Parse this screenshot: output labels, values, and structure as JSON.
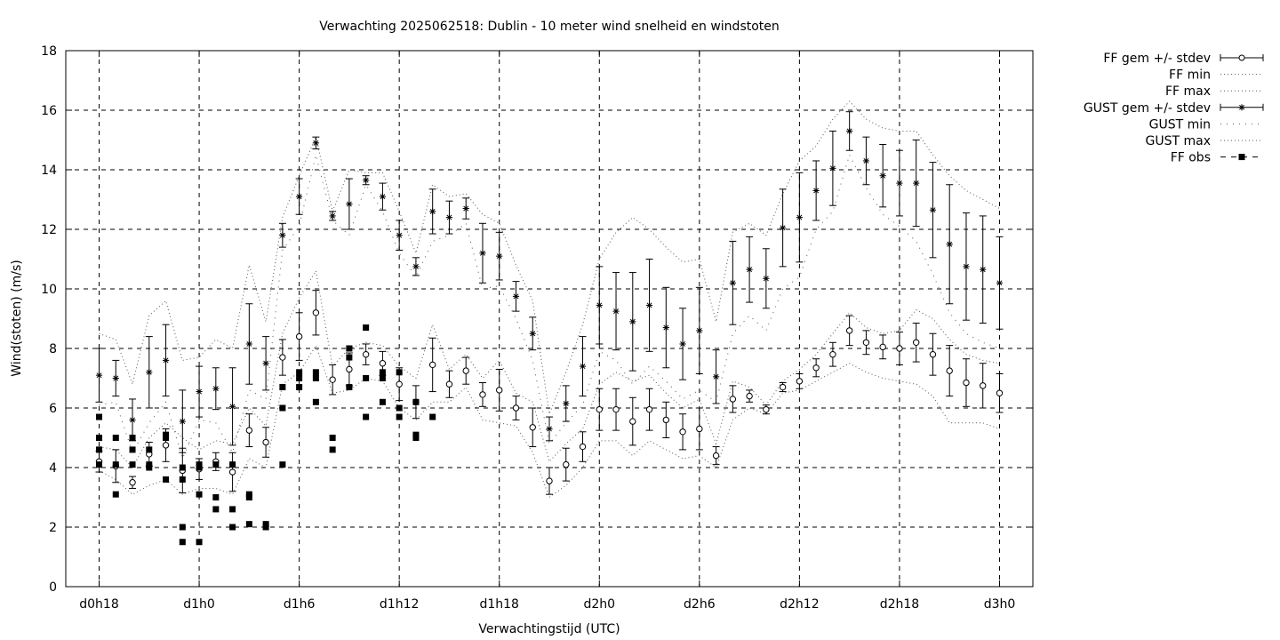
{
  "chart_data": {
    "type": "scatter",
    "title": "Verwachting 2025062518: Dublin - 10 meter wind snelheid en windstoten",
    "xlabel": "Verwachtingstijd (UTC)",
    "ylabel": "Wind(stoten) (m/s)",
    "ylim": [
      0,
      18
    ],
    "y_ticks": [
      0,
      2,
      4,
      6,
      8,
      10,
      12,
      14,
      16,
      18
    ],
    "x_unit": "hours",
    "xlim": [
      -2,
      56
    ],
    "x_tick_hours": [
      0,
      6,
      12,
      18,
      24,
      30,
      36,
      42,
      48,
      54
    ],
    "x_tick_labels": [
      "d0h18",
      "d1h0",
      "d1h6",
      "d1h12",
      "d1h18",
      "d2h0",
      "d2h6",
      "d2h12",
      "d2h18",
      "d3h0"
    ],
    "grid": true,
    "legend_position": "outside-top-right",
    "x": [
      0,
      1,
      2,
      3,
      4,
      5,
      6,
      7,
      8,
      9,
      10,
      11,
      12,
      13,
      14,
      15,
      16,
      17,
      18,
      19,
      20,
      21,
      22,
      23,
      24,
      25,
      26,
      27,
      28,
      29,
      30,
      31,
      32,
      33,
      34,
      35,
      36,
      37,
      38,
      39,
      40,
      41,
      42,
      43,
      44,
      45,
      46,
      47,
      48,
      49,
      50,
      51,
      52,
      53,
      54
    ],
    "series": [
      {
        "name": "FF gem +/- stdev",
        "style": "errorbars-open-circle",
        "values": [
          4.2,
          4.05,
          3.5,
          4.45,
          4.75,
          3.9,
          3.95,
          4.2,
          3.85,
          5.25,
          4.85,
          7.7,
          8.4,
          9.2,
          6.95,
          7.3,
          7.8,
          7.5,
          6.8,
          6.2,
          7.45,
          6.8,
          7.25,
          6.45,
          6.6,
          6.0,
          5.35,
          3.55,
          4.1,
          4.7,
          5.95,
          5.95,
          5.55,
          5.95,
          5.6,
          5.2,
          5.3,
          4.4,
          6.3,
          6.4,
          5.95,
          6.7,
          6.9,
          7.35,
          7.8,
          8.6,
          8.2,
          8.05,
          8.0,
          8.2,
          7.8,
          7.25,
          6.85,
          6.75,
          6.5
        ],
        "stdev": [
          0.35,
          0.55,
          0.2,
          0.4,
          0.55,
          0.75,
          0.35,
          0.3,
          0.65,
          0.55,
          0.5,
          0.6,
          0.8,
          0.75,
          0.5,
          0.55,
          0.35,
          0.4,
          0.55,
          0.55,
          0.9,
          0.45,
          0.45,
          0.4,
          0.7,
          0.4,
          0.65,
          0.45,
          0.55,
          0.5,
          0.7,
          0.7,
          0.8,
          0.7,
          0.6,
          0.6,
          0.7,
          0.3,
          0.45,
          0.2,
          0.15,
          0.15,
          0.25,
          0.3,
          0.4,
          0.5,
          0.4,
          0.4,
          0.55,
          0.65,
          0.7,
          0.85,
          0.8,
          0.75,
          0.65
        ]
      },
      {
        "name": "FF min",
        "style": "dotted",
        "values": [
          3.9,
          3.6,
          3.1,
          3.4,
          3.6,
          3.1,
          3.3,
          3.3,
          3.1,
          4.3,
          4.0,
          6.8,
          7.2,
          8.1,
          6.5,
          6.6,
          7.0,
          6.9,
          6.0,
          5.6,
          6.2,
          6.2,
          6.7,
          5.6,
          5.5,
          5.4,
          4.5,
          3.0,
          3.4,
          4.0,
          4.9,
          4.9,
          4.4,
          4.9,
          4.6,
          4.3,
          4.4,
          4.0,
          5.6,
          6.0,
          5.8,
          6.5,
          6.6,
          6.9,
          7.2,
          7.5,
          7.2,
          7.0,
          6.9,
          6.8,
          6.4,
          5.5,
          5.5,
          5.5,
          5.3
        ]
      },
      {
        "name": "FF max",
        "style": "dotted",
        "values": [
          4.7,
          4.6,
          4.0,
          5.0,
          5.5,
          5.0,
          4.6,
          4.9,
          4.8,
          6.0,
          5.4,
          8.5,
          9.7,
          10.6,
          7.4,
          8.0,
          8.2,
          8.1,
          7.4,
          7.0,
          8.8,
          7.3,
          7.8,
          7.0,
          7.6,
          6.5,
          6.2,
          4.2,
          4.8,
          5.3,
          6.8,
          7.2,
          6.9,
          7.1,
          6.5,
          6.0,
          6.3,
          4.8,
          6.9,
          6.7,
          6.1,
          6.9,
          7.3,
          7.8,
          8.5,
          9.2,
          8.7,
          8.5,
          8.6,
          9.3,
          9.0,
          8.3,
          7.8,
          7.6,
          7.5
        ]
      },
      {
        "name": "GUST gem +/- stdev",
        "style": "errorbars-star",
        "values": [
          7.1,
          7.0,
          5.6,
          7.2,
          7.6,
          5.55,
          6.55,
          6.65,
          6.05,
          8.15,
          7.5,
          11.8,
          13.1,
          14.9,
          12.45,
          12.85,
          13.65,
          13.1,
          11.8,
          10.75,
          12.6,
          12.4,
          12.7,
          11.2,
          11.1,
          9.75,
          8.5,
          5.3,
          6.15,
          7.4,
          9.45,
          9.25,
          8.9,
          9.45,
          8.7,
          8.15,
          8.6,
          7.05,
          10.2,
          10.65,
          10.35,
          12.05,
          12.4,
          13.3,
          14.05,
          15.3,
          14.3,
          13.8,
          13.55,
          13.55,
          12.65,
          11.5,
          10.75,
          10.65,
          10.2
        ],
        "stdev": [
          0.9,
          0.6,
          0.7,
          1.2,
          1.2,
          1.05,
          0.85,
          0.7,
          1.3,
          1.35,
          0.9,
          0.4,
          0.6,
          0.2,
          0.15,
          0.85,
          0.15,
          0.45,
          0.5,
          0.3,
          0.75,
          0.55,
          0.35,
          1.0,
          0.8,
          0.5,
          0.55,
          0.4,
          0.6,
          1.0,
          1.3,
          1.3,
          1.65,
          1.55,
          1.35,
          1.2,
          1.45,
          0.9,
          1.4,
          1.1,
          1.0,
          1.3,
          1.5,
          1.0,
          1.25,
          0.65,
          0.8,
          1.05,
          1.1,
          1.45,
          1.6,
          2.0,
          1.8,
          1.8,
          1.55
        ]
      },
      {
        "name": "GUST min",
        "style": "dotted",
        "values": [
          6.1,
          6.2,
          4.5,
          5.5,
          6.2,
          4.3,
          5.6,
          5.5,
          4.5,
          6.6,
          6.3,
          11.3,
          12.1,
          14.5,
          12.3,
          11.8,
          13.5,
          12.6,
          11.2,
          10.4,
          11.6,
          11.8,
          12.2,
          10.0,
          10.1,
          9.0,
          7.6,
          4.8,
          5.5,
          6.1,
          7.9,
          7.6,
          6.8,
          7.4,
          6.9,
          6.3,
          6.6,
          6.2,
          8.5,
          9.1,
          8.6,
          10.0,
          10.4,
          12.0,
          12.6,
          14.5,
          13.4,
          12.5,
          12.1,
          11.6,
          10.5,
          9.2,
          8.5,
          8.2,
          8.0
        ]
      },
      {
        "name": "GUST max",
        "style": "dotted",
        "values": [
          8.5,
          8.3,
          6.8,
          9.1,
          9.6,
          7.6,
          7.7,
          8.3,
          8.0,
          10.8,
          8.9,
          12.4,
          13.8,
          15.1,
          12.6,
          14.0,
          13.9,
          13.9,
          12.6,
          11.2,
          13.5,
          13.1,
          13.2,
          12.5,
          12.2,
          10.8,
          9.6,
          5.8,
          7.2,
          8.8,
          11.0,
          11.9,
          12.4,
          12.0,
          11.4,
          10.9,
          11.0,
          8.9,
          11.9,
          12.2,
          11.8,
          13.2,
          14.3,
          14.8,
          15.7,
          16.3,
          15.7,
          15.4,
          15.3,
          15.3,
          14.5,
          13.8,
          13.3,
          13.0,
          12.7
        ]
      },
      {
        "name": "FF obs",
        "style": "filled-square",
        "points": [
          [
            0,
            5.7
          ],
          [
            0,
            5.0
          ],
          [
            0,
            4.6
          ],
          [
            0,
            4.1
          ],
          [
            1,
            5.0
          ],
          [
            1,
            4.1
          ],
          [
            1,
            3.1
          ],
          [
            2,
            5.0
          ],
          [
            2,
            4.6
          ],
          [
            2,
            4.1
          ],
          [
            3,
            4.6
          ],
          [
            3,
            4.1
          ],
          [
            3,
            4.0
          ],
          [
            4,
            5.1
          ],
          [
            4,
            5.0
          ],
          [
            4,
            3.6
          ],
          [
            5,
            4.0
          ],
          [
            5,
            3.6
          ],
          [
            5,
            2.0
          ],
          [
            5,
            1.5
          ],
          [
            6,
            4.1
          ],
          [
            6,
            4.0
          ],
          [
            6,
            3.1
          ],
          [
            6,
            1.5
          ],
          [
            7,
            4.1
          ],
          [
            7,
            3.0
          ],
          [
            7,
            2.6
          ],
          [
            8,
            4.1
          ],
          [
            8,
            2.6
          ],
          [
            8,
            2.0
          ],
          [
            9,
            3.1
          ],
          [
            9,
            3.0
          ],
          [
            9,
            2.1
          ],
          [
            10,
            2.1
          ],
          [
            10,
            2.0
          ],
          [
            11,
            6.7
          ],
          [
            11,
            6.0
          ],
          [
            11,
            4.1
          ],
          [
            12,
            7.2
          ],
          [
            12,
            7.0
          ],
          [
            12,
            6.7
          ],
          [
            13,
            7.2
          ],
          [
            13,
            7.0
          ],
          [
            13,
            6.2
          ],
          [
            14,
            5.0
          ],
          [
            14,
            4.6
          ],
          [
            15,
            8.0
          ],
          [
            15,
            7.7
          ],
          [
            15,
            6.7
          ],
          [
            16,
            8.7
          ],
          [
            16,
            7.0
          ],
          [
            16,
            5.7
          ],
          [
            17,
            7.2
          ],
          [
            17,
            7.0
          ],
          [
            17,
            6.2
          ],
          [
            18,
            7.2
          ],
          [
            18,
            6.0
          ],
          [
            18,
            5.7
          ],
          [
            19,
            6.2
          ],
          [
            19,
            5.1
          ],
          [
            19,
            5.0
          ],
          [
            20,
            5.7
          ]
        ]
      }
    ]
  }
}
